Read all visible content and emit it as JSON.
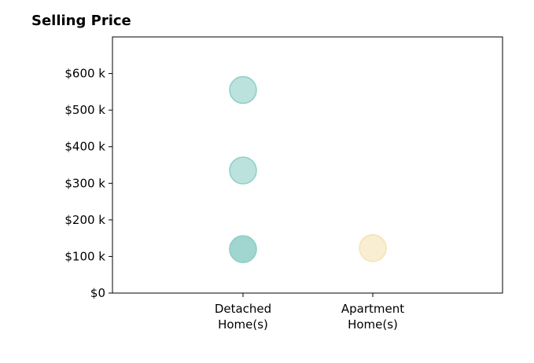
{
  "chart_data": {
    "type": "scatter",
    "title": "Selling Price",
    "xlabel": "",
    "ylabel": "",
    "categories": [
      "Detached\nHome(s)",
      "Apartment\nHome(s)"
    ],
    "ylim": [
      0,
      700000
    ],
    "yticks": [
      0,
      100000,
      200000,
      300000,
      400000,
      500000,
      600000
    ],
    "ytick_labels": [
      "$0",
      "$100 k",
      "$200 k",
      "$300 k",
      "$400 k",
      "$500 k",
      "$600 k"
    ],
    "grid": false,
    "points": [
      {
        "category": "Detached\nHome(s)",
        "y": 555000,
        "color": "#8ecfc6"
      },
      {
        "category": "Detached\nHome(s)",
        "y": 335000,
        "color": "#8ecfc6"
      },
      {
        "category": "Detached\nHome(s)",
        "y": 120000,
        "color": "#8ecfc6"
      },
      {
        "category": "Detached\nHome(s)",
        "y": 120000,
        "color": "#8ecfc6"
      },
      {
        "category": "Apartment\nHome(s)",
        "y": 123000,
        "color": "#f5e2b3"
      }
    ]
  }
}
